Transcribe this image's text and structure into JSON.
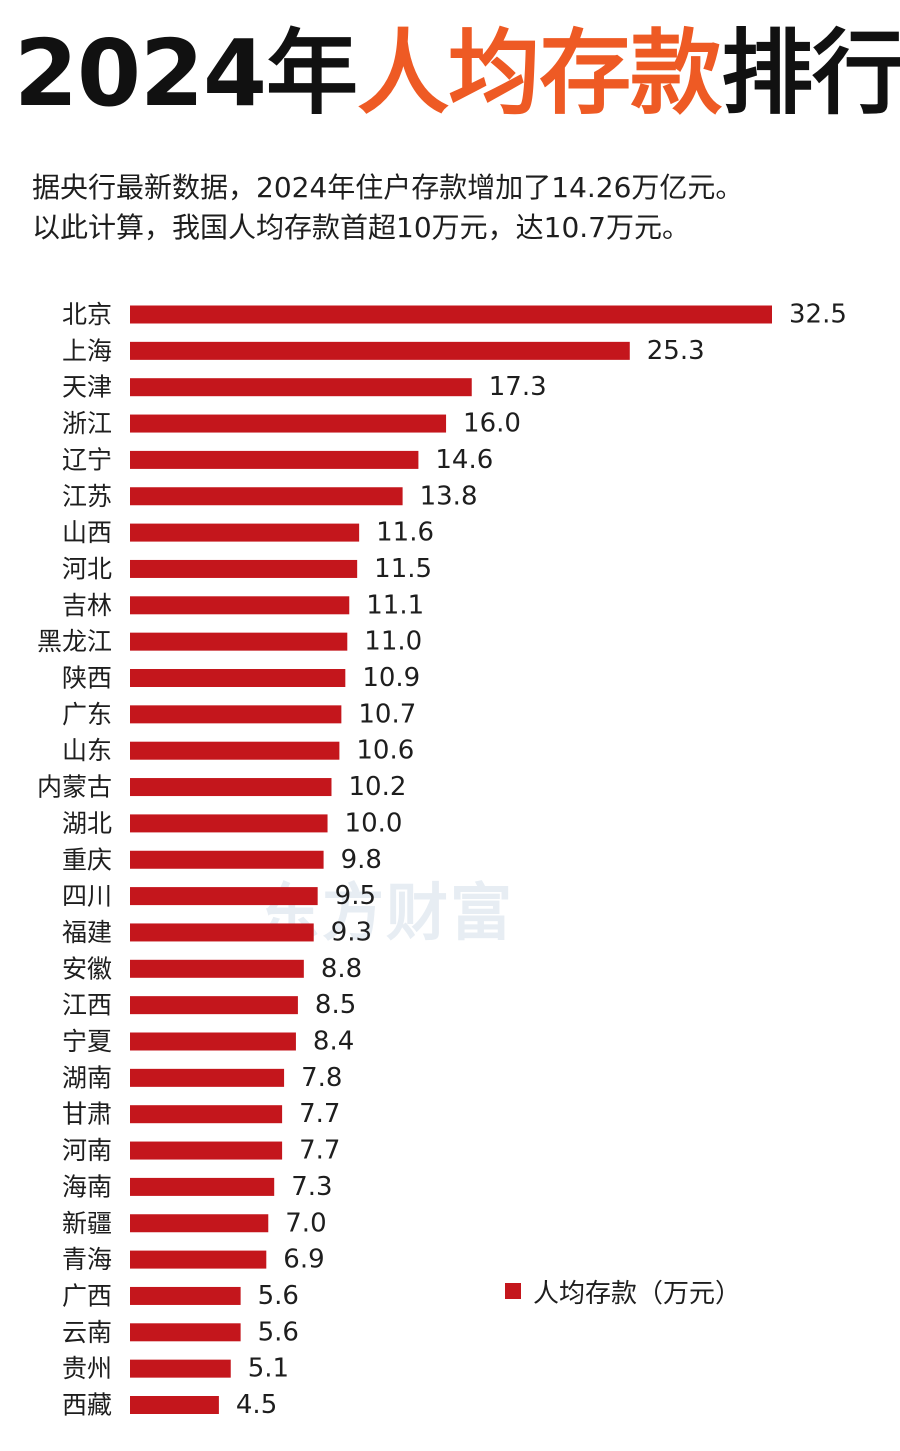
{
  "header": {
    "title_year": "2024年",
    "title_mid": "人均存款",
    "title_end": "排行",
    "subtitle_line1": "据央行最新数据，2024年住户存款增加了14.26万亿元。",
    "subtitle_line2": "以此计算，我国人均存款首超10万元，达10.7万元。"
  },
  "watermark": "东方财富",
  "colors": {
    "bar": "#c4161c",
    "title_accent": "#ee5a24"
  },
  "chart_data": {
    "type": "bar",
    "orientation": "horizontal",
    "title": "2024年人均存款排行",
    "categories": [
      "北京",
      "上海",
      "天津",
      "浙江",
      "辽宁",
      "江苏",
      "山西",
      "河北",
      "吉林",
      "黑龙江",
      "陕西",
      "广东",
      "山东",
      "内蒙古",
      "湖北",
      "重庆",
      "四川",
      "福建",
      "安徽",
      "江西",
      "宁夏",
      "湖南",
      "甘肃",
      "河南",
      "海南",
      "新疆",
      "青海",
      "广西",
      "云南",
      "贵州",
      "西藏"
    ],
    "series": [
      {
        "name": "人均存款（万元）",
        "values": [
          32.5,
          25.3,
          17.3,
          16.0,
          14.6,
          13.8,
          11.6,
          11.5,
          11.1,
          11.0,
          10.9,
          10.7,
          10.6,
          10.2,
          10.0,
          9.8,
          9.5,
          9.3,
          8.8,
          8.5,
          8.4,
          7.8,
          7.7,
          7.7,
          7.3,
          7.0,
          6.9,
          5.6,
          5.6,
          5.1,
          4.5
        ],
        "labels": [
          "32.5",
          "25.3",
          "17.3",
          "16.0",
          "14.6",
          "13.8",
          "11.6",
          "11.5",
          "11.1",
          "11.0",
          "10.9",
          "10.7",
          "10.6",
          "10.2",
          "10.0",
          "9.8",
          "9.5",
          "9.3",
          "8.8",
          "8.5",
          "8.4",
          "7.8",
          "7.7",
          "7.7",
          "7.3",
          "7.0",
          "6.9",
          "5.6",
          "5.6",
          "5.1",
          "4.5"
        ]
      }
    ],
    "xlim": [
      0,
      32.5
    ],
    "grid": false,
    "legend_position": "bottom-right"
  }
}
